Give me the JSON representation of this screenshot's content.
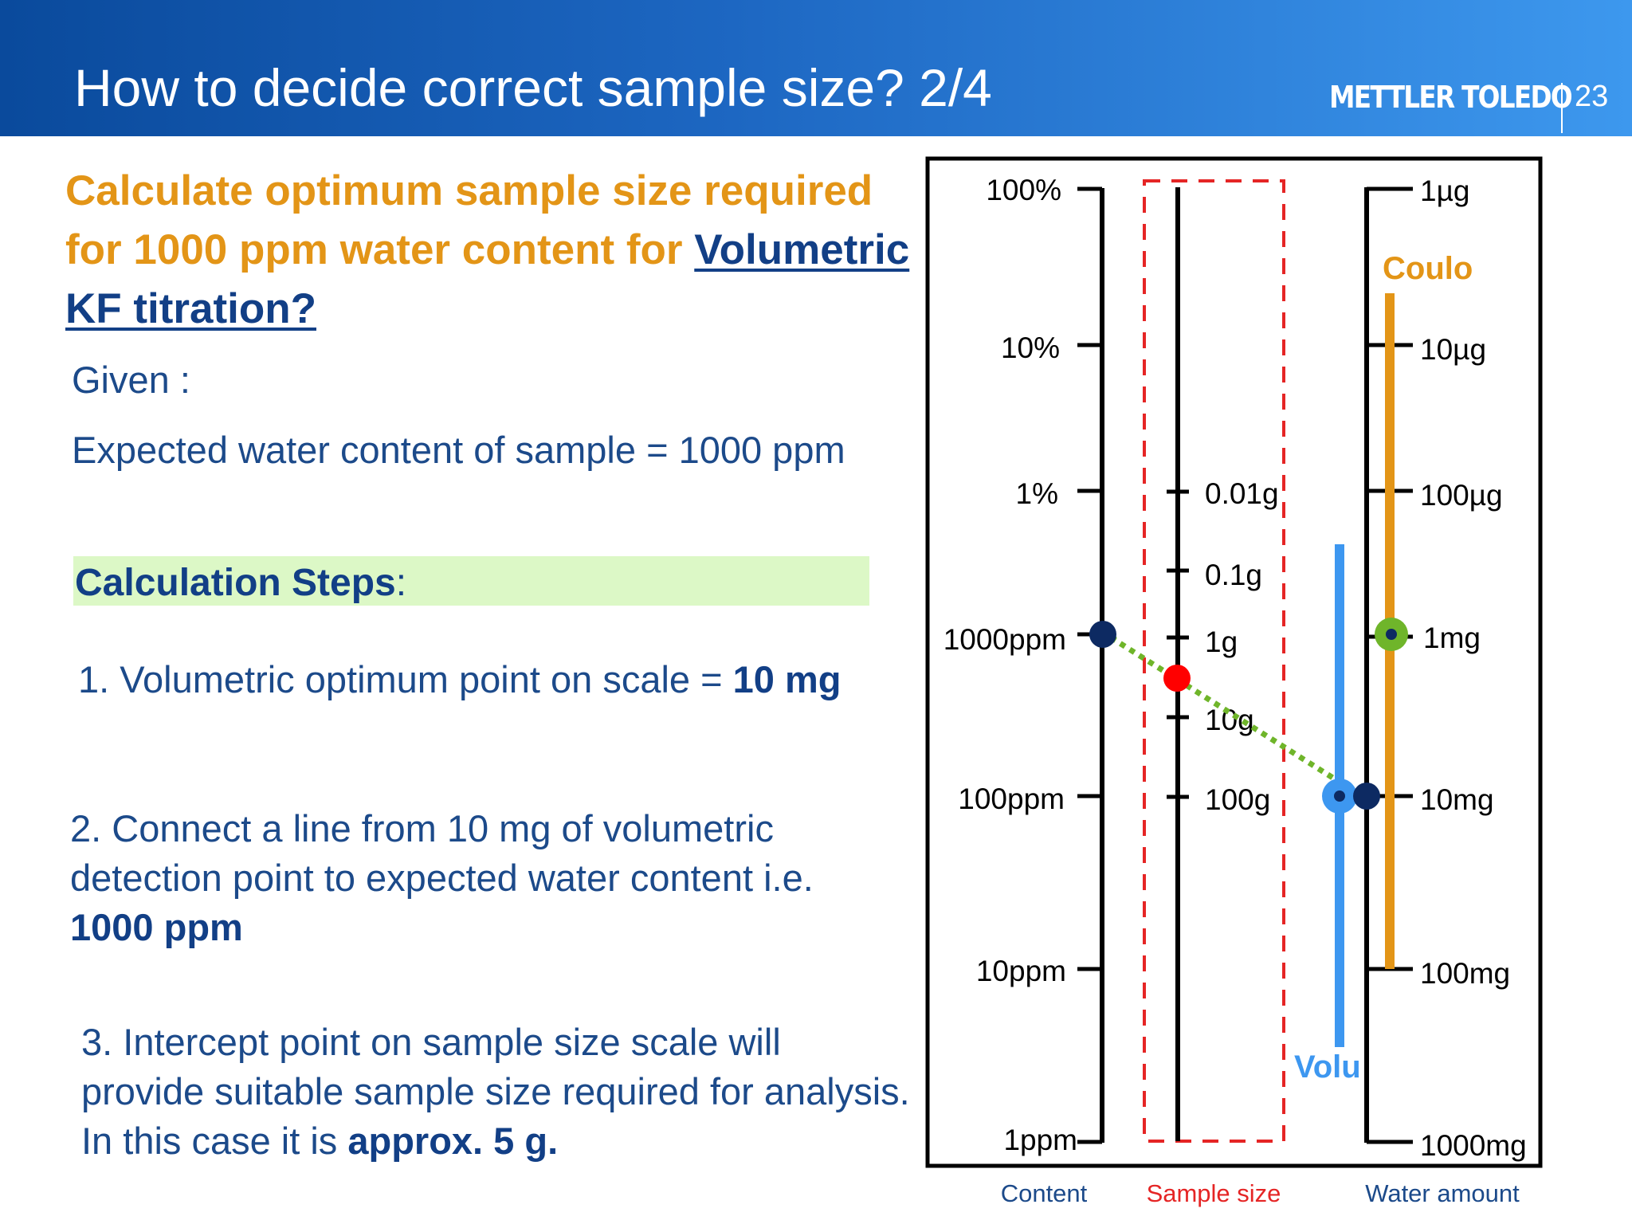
{
  "header": {
    "title": "How to decide correct sample size? 2/4",
    "brand": "METTLER TOLEDO",
    "page_number": "23"
  },
  "left": {
    "heading_part1": "Calculate optimum sample size required for 1000 ppm water content for ",
    "heading_link": "Volumetric KF titration?",
    "given_label": "Given :",
    "expected": "Expected water content of sample = 1000 ppm",
    "calc_steps_label": "Calculation Steps",
    "calc_steps_colon": ":",
    "step1_text": "1. Volumetric optimum point on scale = ",
    "step1_bold": "10 mg",
    "step2_text": "2. Connect a line from 10 mg of volumetric detection point to expected water content i.e. ",
    "step2_bold": "1000 ppm",
    "step3_text": "3. Intercept point on sample size scale will provide suitable sample size required for analysis. In this case it is ",
    "step3_bold": "approx. 5 g."
  },
  "diagram": {
    "content_ticks": [
      "100%",
      "10%",
      "1%",
      "1000ppm",
      "100ppm",
      "10ppm",
      "1ppm"
    ],
    "sample_ticks": [
      "0.01g",
      "0.1g",
      "1g",
      "10g",
      "100g"
    ],
    "water_ticks": [
      "1µg",
      "10µg",
      "100µg",
      "1mg",
      "10mg",
      "100mg",
      "1000mg"
    ],
    "coulo_label": "Coulo",
    "volu_label": "Volu",
    "axis_content": "Content",
    "axis_sample": "Sample size",
    "axis_water": "Water amount",
    "colors": {
      "coulo": "#e39517",
      "volu": "#3d97f0",
      "sample_box": "#e52525",
      "intercept": "#ff0000",
      "connector": "#6fb52a",
      "point": "#0d2a62"
    }
  }
}
